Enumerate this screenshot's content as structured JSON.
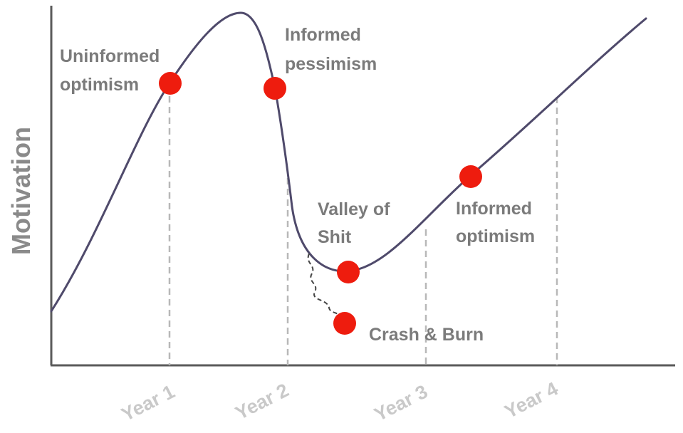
{
  "diagram": {
    "y_axis_label": "Motivation",
    "x_ticks": [
      {
        "label": "Year 1"
      },
      {
        "label": "Year 2"
      },
      {
        "label": "Year 3"
      },
      {
        "label": "Year 4"
      }
    ],
    "stages": {
      "uninformed_optimism": {
        "line1": "Uninformed",
        "line2": "optimism"
      },
      "informed_pessimism": {
        "line1": "Informed",
        "line2": "pessimism"
      },
      "valley": {
        "line1": "Valley of",
        "line2": "Shit"
      },
      "informed_optimism": {
        "line1": "Informed",
        "line2": "optimism"
      },
      "crash": {
        "label": "Crash & Burn"
      }
    },
    "colors": {
      "curve": "#4f4a6b",
      "marker": "#ee1c0e",
      "axis": "#5a5a5a",
      "guide": "#b8b8b8",
      "label": "#7b7b7b",
      "tick_label": "#c9c9c9"
    }
  }
}
